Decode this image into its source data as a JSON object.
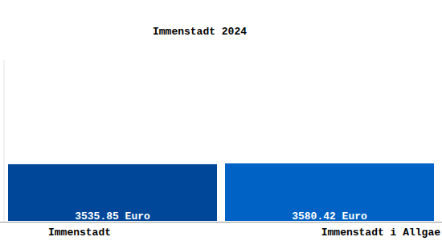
{
  "chart_data": {
    "type": "bar",
    "title": "Immenstadt 2024",
    "categories": [
      "Immenstadt",
      "Immenstadt i Allgae"
    ],
    "values": [
      3535.85,
      3580.42
    ],
    "value_labels": [
      "3535.85 Euro",
      "3580.42 Euro"
    ],
    "colors": [
      "#00479a",
      "#0062c4"
    ],
    "ylim": [
      0,
      10000
    ],
    "data_labels": true,
    "tick_labels": false
  }
}
